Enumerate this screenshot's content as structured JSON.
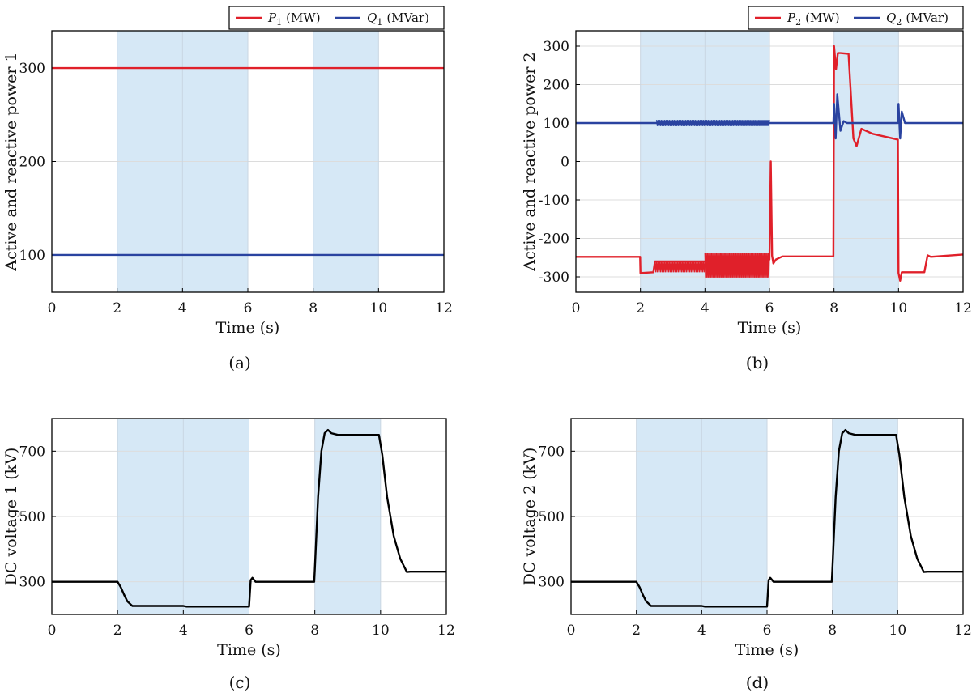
{
  "colors": {
    "p": "#e0202a",
    "q": "#2a43a0",
    "dc": "#000000",
    "shade": "#d6e8f6",
    "grid": "#dcdcdc"
  },
  "chart_data": [
    {
      "type": "line",
      "caption": "(a)",
      "xlabel": "Time (s)",
      "ylabel": "Active and reactive power 1",
      "xlim": [
        0,
        12
      ],
      "ylim": [
        60,
        340
      ],
      "xticks": [
        0,
        2,
        4,
        6,
        8,
        10,
        12
      ],
      "yticks": [
        100,
        200,
        300
      ],
      "shaded_intervals": [
        [
          2,
          6
        ],
        [
          8,
          10
        ]
      ],
      "legend": {
        "position": "top-right",
        "entries": [
          {
            "sym": "P",
            "sub": "1",
            "unit": "(MW)"
          },
          {
            "sym": "Q",
            "sub": "1",
            "unit": "(MVar)"
          }
        ]
      },
      "series": [
        {
          "color": "p",
          "x": [
            0,
            12
          ],
          "y": [
            300,
            300
          ]
        },
        {
          "color": "q",
          "x": [
            0,
            12
          ],
          "y": [
            100,
            100
          ]
        }
      ]
    },
    {
      "type": "line",
      "caption": "(b)",
      "xlabel": "Time (s)",
      "ylabel": "Active and reactive power 2",
      "xlim": [
        0,
        12
      ],
      "ylim": [
        -340,
        340
      ],
      "xticks": [
        0,
        2,
        4,
        6,
        8,
        10,
        12
      ],
      "yticks": [
        -300,
        -200,
        -100,
        0,
        100,
        200,
        300
      ],
      "shaded_intervals": [
        [
          2,
          6
        ],
        [
          8,
          10
        ]
      ],
      "legend": {
        "position": "top-right",
        "entries": [
          {
            "sym": "P",
            "sub": "2",
            "unit": "(MW)"
          },
          {
            "sym": "Q",
            "sub": "2",
            "unit": "(MVar)"
          }
        ]
      },
      "series": [
        {
          "color": "p",
          "x": [
            0,
            1.99,
            2.0,
            2.4,
            2.45,
            4.0,
            4.05,
            6.0,
            6.04,
            6.08,
            6.12,
            6.2,
            6.4,
            7.98,
            8.0,
            8.06,
            8.12,
            8.2,
            8.45,
            8.6,
            8.7,
            8.85,
            9.2,
            9.98,
            10.0,
            10.05,
            10.1,
            10.8,
            10.9,
            11.0,
            12.0
          ],
          "y": [
            -248,
            -248,
            -290,
            -288,
            -260,
            -260,
            -255,
            -255,
            0,
            -245,
            -265,
            -255,
            -247,
            -247,
            300,
            240,
            282,
            282,
            280,
            60,
            40,
            85,
            72,
            57,
            -290,
            -310,
            -288,
            -288,
            -244,
            -248,
            -242
          ]
        },
        {
          "color": "q",
          "x": [
            0,
            7.98,
            8.0,
            8.05,
            8.1,
            8.2,
            8.3,
            8.4,
            8.6,
            9.98,
            10.0,
            10.05,
            10.1,
            10.2,
            12.0
          ],
          "y": [
            100,
            100,
            150,
            60,
            175,
            80,
            105,
            100,
            100,
            100,
            150,
            60,
            130,
            100,
            100
          ]
        }
      ],
      "oscillation": [
        {
          "color": "p",
          "x0": 2.45,
          "x1": 4.0,
          "center": -273,
          "amp": 15,
          "period": 0.05
        },
        {
          "color": "p",
          "x0": 4.0,
          "x1": 6.0,
          "center": -270,
          "amp": 32,
          "period": 0.04
        },
        {
          "color": "q",
          "x0": 2.5,
          "x1": 6.0,
          "center": 100,
          "amp": 8,
          "period": 0.05
        }
      ]
    },
    {
      "type": "line",
      "caption": "(c)",
      "xlabel": "Time (s)",
      "ylabel": "DC voltage 1 (kV)",
      "xlim": [
        0,
        12
      ],
      "ylim": [
        200,
        800
      ],
      "xticks": [
        0,
        2,
        4,
        6,
        8,
        10,
        12
      ],
      "yticks": [
        300,
        500,
        700
      ],
      "shaded_intervals": [
        [
          2,
          6
        ],
        [
          8,
          10
        ]
      ],
      "series": [
        {
          "color": "dc",
          "x": [
            0,
            2.0,
            2.1,
            2.2,
            2.3,
            2.45,
            4.0,
            4.1,
            6.0,
            6.05,
            6.1,
            6.2,
            7.98,
            8.0,
            8.1,
            8.2,
            8.3,
            8.4,
            8.5,
            8.7,
            9.95,
            10.05,
            10.2,
            10.4,
            10.6,
            10.8,
            10.9,
            12.0
          ],
          "y": [
            300,
            300,
            283,
            260,
            240,
            226,
            226,
            224,
            224,
            305,
            312,
            300,
            300,
            340,
            560,
            700,
            755,
            765,
            755,
            750,
            750,
            690,
            560,
            440,
            370,
            330,
            331,
            331
          ]
        }
      ]
    },
    {
      "type": "line",
      "caption": "(d)",
      "xlabel": "Time (s)",
      "ylabel": "DC voltage 2 (kV)",
      "xlim": [
        0,
        12
      ],
      "ylim": [
        200,
        800
      ],
      "xticks": [
        0,
        2,
        4,
        6,
        8,
        10,
        12
      ],
      "yticks": [
        300,
        500,
        700
      ],
      "shaded_intervals": [
        [
          2,
          6
        ],
        [
          8,
          10
        ]
      ],
      "series": [
        {
          "color": "dc",
          "x": [
            0,
            2.0,
            2.1,
            2.2,
            2.3,
            2.45,
            4.0,
            4.1,
            6.0,
            6.05,
            6.1,
            6.2,
            7.98,
            8.0,
            8.1,
            8.2,
            8.3,
            8.4,
            8.5,
            8.7,
            9.95,
            10.05,
            10.2,
            10.4,
            10.6,
            10.8,
            10.9,
            12.0
          ],
          "y": [
            300,
            300,
            283,
            260,
            240,
            226,
            226,
            224,
            224,
            305,
            312,
            300,
            300,
            340,
            560,
            700,
            755,
            765,
            755,
            750,
            750,
            690,
            560,
            440,
            370,
            330,
            331,
            331
          ]
        }
      ]
    }
  ]
}
